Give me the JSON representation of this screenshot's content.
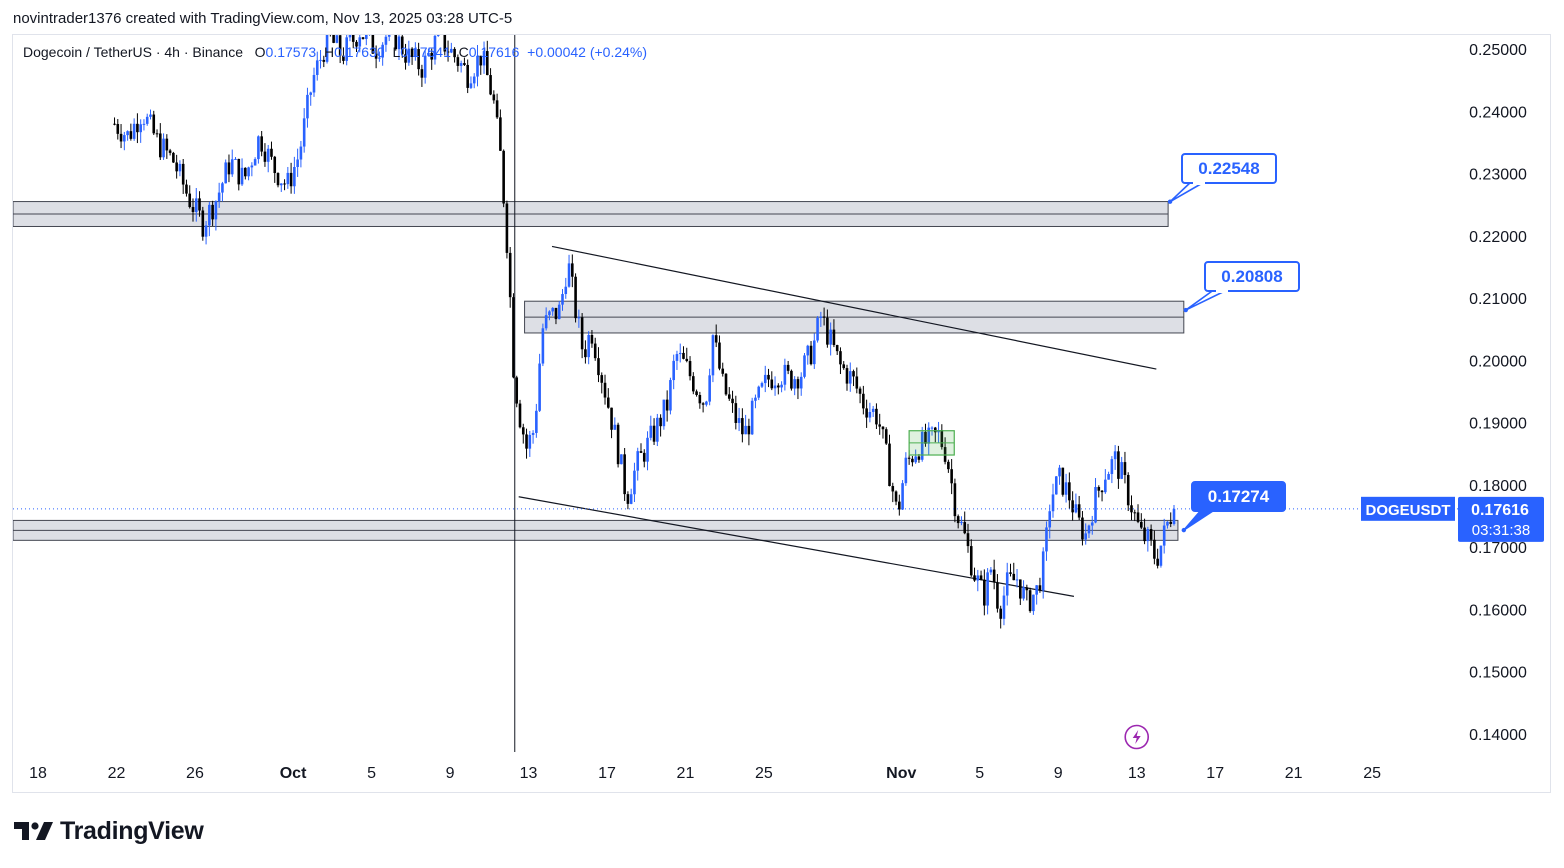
{
  "header": {
    "text": "novintrader1376 created with TradingView.com, Nov 13, 2025 03:28 UTC-5"
  },
  "legend": {
    "symbol": "Dogecoin / TetherUS · 4h · Binance",
    "o_label": "O",
    "o_value": "0.17573",
    "h_label": "H",
    "h_value": "0.17630",
    "l_label": "L",
    "l_value": "0.17541",
    "c_label": "C",
    "c_value": "0.17616",
    "change": "+0.00042 (+0.24%)"
  },
  "logo": {
    "text": "TradingView",
    "icon": "tradingview-logo-icon"
  },
  "colors": {
    "up": "#2962ff",
    "down": "#000000",
    "zone_fill": "#d1d4dc",
    "zone_border": "#434651",
    "callout": "#2962ff",
    "box_green": "#4caf50",
    "lightning": "#9c27b0",
    "axis_text": "#131722"
  },
  "chart_data": {
    "type": "candlestick",
    "symbol_tag": "DOGEUSDT",
    "last_price": "0.17616",
    "countdown": "03:31:38",
    "y_axis": {
      "min": 0.135,
      "max": 0.2545,
      "ticks": [
        "0.25000",
        "0.24000",
        "0.23000",
        "0.22000",
        "0.21000",
        "0.20000",
        "0.19000",
        "0.18000",
        "0.17000",
        "0.16000",
        "0.15000",
        "0.14000"
      ]
    },
    "x_axis": {
      "ticks": [
        {
          "label": "18",
          "day": 0
        },
        {
          "label": "22",
          "day": 4
        },
        {
          "label": "26",
          "day": 8
        },
        {
          "label": "Oct",
          "day": 13,
          "bold": true
        },
        {
          "label": "5",
          "day": 17
        },
        {
          "label": "9",
          "day": 21
        },
        {
          "label": "13",
          "day": 25
        },
        {
          "label": "17",
          "day": 29
        },
        {
          "label": "21",
          "day": 33
        },
        {
          "label": "25",
          "day": 37
        },
        {
          "label": "Nov",
          "day": 44,
          "bold": true
        },
        {
          "label": "5",
          "day": 48
        },
        {
          "label": "9",
          "day": 52
        },
        {
          "label": "13",
          "day": 56
        },
        {
          "label": "17",
          "day": 60
        },
        {
          "label": "21",
          "day": 64
        },
        {
          "label": "25",
          "day": 68
        }
      ]
    },
    "series_path": [
      [
        3.9,
        0.238
      ],
      [
        4.6,
        0.236
      ],
      [
        5.3,
        0.24
      ],
      [
        6.1,
        0.235
      ],
      [
        6.9,
        0.232
      ],
      [
        7.7,
        0.226
      ],
      [
        8.4,
        0.222
      ],
      [
        9.1,
        0.226
      ],
      [
        9.8,
        0.232
      ],
      [
        10.5,
        0.229
      ],
      [
        11.3,
        0.236
      ],
      [
        12.0,
        0.231
      ],
      [
        12.7,
        0.228
      ],
      [
        13.3,
        0.233
      ],
      [
        14.0,
        0.245
      ],
      [
        14.8,
        0.252
      ],
      [
        15.5,
        0.249
      ],
      [
        16.4,
        0.253
      ],
      [
        17.2,
        0.25
      ],
      [
        18.0,
        0.253
      ],
      [
        18.8,
        0.249
      ],
      [
        19.6,
        0.247
      ],
      [
        20.4,
        0.252
      ],
      [
        21.2,
        0.249
      ],
      [
        21.9,
        0.246
      ],
      [
        22.6,
        0.249
      ],
      [
        23.2,
        0.242
      ],
      [
        23.6,
        0.232
      ],
      [
        24.0,
        0.215
      ],
      [
        24.2,
        0.2
      ],
      [
        24.5,
        0.192
      ],
      [
        24.9,
        0.186
      ],
      [
        25.3,
        0.189
      ],
      [
        25.7,
        0.205
      ],
      [
        26.1,
        0.207
      ],
      [
        26.6,
        0.208
      ],
      [
        27.0,
        0.216
      ],
      [
        27.4,
        0.208
      ],
      [
        27.8,
        0.201
      ],
      [
        28.2,
        0.205
      ],
      [
        28.7,
        0.198
      ],
      [
        29.2,
        0.191
      ],
      [
        29.6,
        0.185
      ],
      [
        30.0,
        0.178
      ],
      [
        30.5,
        0.183
      ],
      [
        31.0,
        0.186
      ],
      [
        31.5,
        0.189
      ],
      [
        32.1,
        0.193
      ],
      [
        32.5,
        0.201
      ],
      [
        33.0,
        0.199
      ],
      [
        33.5,
        0.196
      ],
      [
        34.0,
        0.193
      ],
      [
        34.4,
        0.204
      ],
      [
        34.9,
        0.196
      ],
      [
        35.5,
        0.191
      ],
      [
        36.0,
        0.188
      ],
      [
        36.6,
        0.193
      ],
      [
        37.2,
        0.197
      ],
      [
        37.8,
        0.198
      ],
      [
        38.3,
        0.197
      ],
      [
        38.9,
        0.198
      ],
      [
        39.5,
        0.202
      ],
      [
        39.9,
        0.207
      ],
      [
        40.4,
        0.203
      ],
      [
        40.9,
        0.199
      ],
      [
        41.5,
        0.197
      ],
      [
        42.1,
        0.193
      ],
      [
        42.8,
        0.191
      ],
      [
        43.4,
        0.182
      ],
      [
        43.8,
        0.175
      ],
      [
        44.2,
        0.183
      ],
      [
        44.8,
        0.186
      ],
      [
        45.4,
        0.187
      ],
      [
        45.9,
        0.188
      ],
      [
        46.3,
        0.185
      ],
      [
        46.8,
        0.176
      ],
      [
        47.2,
        0.172
      ],
      [
        47.7,
        0.166
      ],
      [
        48.2,
        0.162
      ],
      [
        48.6,
        0.167
      ],
      [
        49.0,
        0.16
      ],
      [
        49.4,
        0.164
      ],
      [
        49.9,
        0.165
      ],
      [
        50.4,
        0.161
      ],
      [
        50.9,
        0.163
      ],
      [
        51.3,
        0.168
      ],
      [
        51.6,
        0.178
      ],
      [
        52.1,
        0.181
      ],
      [
        52.6,
        0.178
      ],
      [
        53.0,
        0.174
      ],
      [
        53.4,
        0.172
      ],
      [
        53.8,
        0.177
      ],
      [
        54.4,
        0.182
      ],
      [
        54.9,
        0.184
      ],
      [
        55.3,
        0.181
      ],
      [
        55.8,
        0.176
      ],
      [
        56.2,
        0.172
      ],
      [
        56.6,
        0.171
      ],
      [
        57.0,
        0.168
      ],
      [
        57.4,
        0.172
      ],
      [
        57.7,
        0.175
      ],
      [
        57.9,
        0.176
      ]
    ],
    "zones": [
      {
        "top": 0.2255,
        "bottom": 0.2215,
        "x_start": -3,
        "x_end": 57.6
      },
      {
        "top": 0.2095,
        "bottom": 0.2044,
        "x_start": 24.8,
        "x_end": 58.4
      },
      {
        "top": 0.1743,
        "bottom": 0.1711,
        "x_start": -3,
        "x_end": 58.1
      }
    ],
    "trendlines": [
      {
        "x1": 26.2,
        "y1": 0.2183,
        "x2": 57.0,
        "y2": 0.1986
      },
      {
        "x1": 24.5,
        "y1": 0.1781,
        "x2": 52.8,
        "y2": 0.1621
      }
    ],
    "consolidation_box": {
      "x1": 44.4,
      "x2": 46.7,
      "top": 0.1887,
      "bottom": 0.1848
    },
    "callouts": [
      {
        "label": "0.22548",
        "price": 0.22548,
        "anchor_day": 57.7
      },
      {
        "label": "0.20808",
        "price": 0.20808,
        "anchor_day": 58.5
      },
      {
        "label": "0.17274",
        "price": 0.17274,
        "anchor_day": 58.4
      }
    ],
    "event_marker": "lightning-icon",
    "crosshair_day": 24.3
  }
}
